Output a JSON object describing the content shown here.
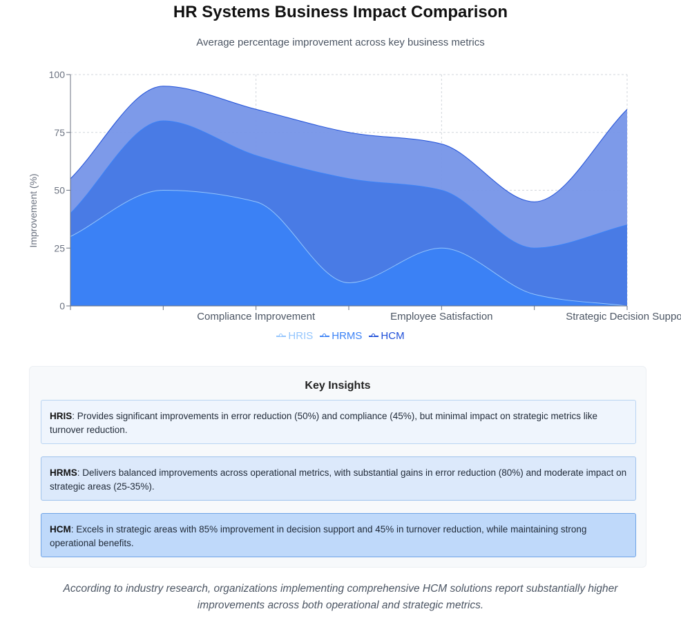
{
  "header": {
    "title": "HR Systems Business Impact Comparison",
    "subtitle": "Average percentage improvement across key business metrics"
  },
  "chart_data": {
    "type": "area",
    "categories": [
      "",
      "",
      "Compliance Improvement",
      "",
      "Employee Satisfaction",
      "",
      "Strategic Decision Support"
    ],
    "ylabel": "Improvement (%)",
    "xlabel": "",
    "ylim": [
      0,
      100
    ],
    "yticks": [
      0,
      25,
      50,
      75,
      100
    ],
    "grid": true,
    "legend_position": "bottom",
    "series": [
      {
        "name": "HRIS",
        "color": "#93c5fd",
        "fill": "#3b82f6",
        "values": [
          30,
          50,
          45,
          10,
          25,
          5,
          0
        ]
      },
      {
        "name": "HRMS",
        "color": "#3b82f6",
        "fill": "#4779e5",
        "values": [
          40,
          80,
          65,
          55,
          50,
          25,
          35
        ]
      },
      {
        "name": "HCM",
        "color": "#1d4ed8",
        "fill": "#7695e8",
        "values": [
          55,
          95,
          85,
          75,
          70,
          45,
          85
        ]
      }
    ]
  },
  "insights": {
    "title": "Key Insights",
    "items": [
      {
        "name": "HRIS",
        "text": ": Provides significant improvements in error reduction (50%) and compliance (45%), but minimal impact on strategic metrics like turnover reduction."
      },
      {
        "name": "HRMS",
        "text": ": Delivers balanced improvements across operational metrics, with substantial gains in error reduction (80%) and moderate impact on strategic areas (25-35%)."
      },
      {
        "name": "HCM",
        "text": ": Excels in strategic areas with 85% improvement in decision support and 45% in turnover reduction, while maintaining strong operational benefits."
      }
    ]
  },
  "footer": {
    "note": "According to industry research, organizations implementing comprehensive HCM solutions report substantially higher improvements across both operational and strategic metrics."
  }
}
